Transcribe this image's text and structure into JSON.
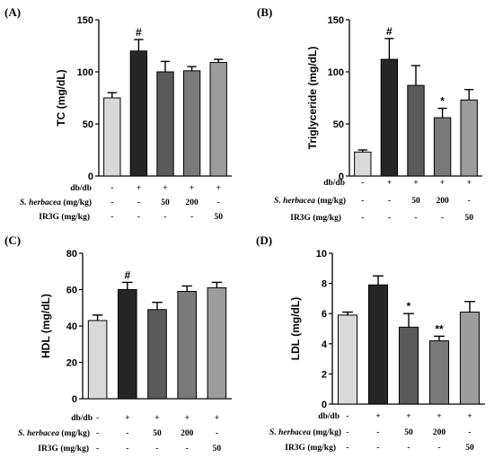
{
  "bar_colors": [
    "#d9d9d9",
    "#262626",
    "#5a5a5a",
    "#7a7a7a",
    "#9c9c9c"
  ],
  "treatment_rows": [
    {
      "label": "db/db",
      "italic_part": "",
      "rest": "db/db",
      "cells": [
        "-",
        "+",
        "+",
        "+",
        "+"
      ]
    },
    {
      "label": "S. herbacea (mg/kg)",
      "italic_part": "S. herbacea",
      "rest": " (mg/kg)",
      "cells": [
        "-",
        "-",
        "50",
        "200",
        "-"
      ]
    },
    {
      "label": "IR3G (mg/kg)",
      "italic_part": "",
      "rest": "IR3G (mg/kg)",
      "cells": [
        "-",
        "-",
        "-",
        "-",
        "50"
      ]
    }
  ],
  "chart_data": [
    {
      "type": "bar",
      "panel": "(A)",
      "ylabel": "TC (mg/dL)",
      "ylim": [
        0,
        150
      ],
      "yticks": [
        "0",
        "50",
        "100",
        "150"
      ],
      "values": [
        75,
        120,
        100,
        101,
        109
      ],
      "errors": [
        5,
        11,
        10,
        4,
        3
      ],
      "annotations": [
        "",
        "#",
        "",
        "",
        ""
      ]
    },
    {
      "type": "bar",
      "panel": "(B)",
      "ylabel": "Triglyceride (mg/dL)",
      "ylim": [
        0,
        150
      ],
      "yticks": [
        "0",
        "50",
        "100",
        "150"
      ],
      "values": [
        23,
        112,
        87,
        56,
        73
      ],
      "errors": [
        2,
        20,
        19,
        9,
        10
      ],
      "annotations": [
        "",
        "#",
        "",
        "*",
        ""
      ]
    },
    {
      "type": "bar",
      "panel": "(C)",
      "ylabel": "HDL (mg/dL)",
      "ylim": [
        0,
        80
      ],
      "yticks": [
        "0",
        "20",
        "40",
        "60",
        "80"
      ],
      "values": [
        43,
        60,
        49,
        59,
        61
      ],
      "errors": [
        3,
        4,
        4,
        3,
        3
      ],
      "annotations": [
        "",
        "#",
        "",
        "",
        ""
      ]
    },
    {
      "type": "bar",
      "panel": "(D)",
      "ylabel": "LDL (mg/dL)",
      "ylim": [
        0,
        10
      ],
      "yticks": [
        "0",
        "2",
        "4",
        "6",
        "8",
        "10"
      ],
      "values": [
        5.9,
        7.9,
        5.1,
        4.2,
        6.1
      ],
      "errors": [
        0.2,
        0.6,
        0.9,
        0.3,
        0.7
      ],
      "annotations": [
        "",
        "",
        "*",
        "**",
        ""
      ]
    }
  ]
}
